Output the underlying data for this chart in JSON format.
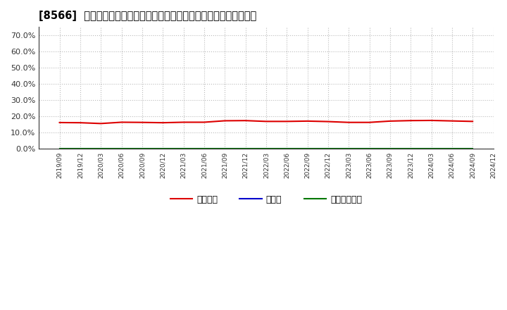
{
  "title": "[8566]  自己資本、のれん、繰延税金資産の総資産に対する比率の推移",
  "x_labels": [
    "2019/09",
    "2019/12",
    "2020/03",
    "2020/06",
    "2020/09",
    "2020/12",
    "2021/03",
    "2021/06",
    "2021/09",
    "2021/12",
    "2022/03",
    "2022/06",
    "2022/09",
    "2022/12",
    "2023/03",
    "2023/06",
    "2023/09",
    "2023/12",
    "2024/03",
    "2024/06",
    "2024/09",
    "2024/12"
  ],
  "equity_ratio": [
    0.161,
    0.16,
    0.155,
    0.163,
    0.162,
    0.16,
    0.163,
    0.163,
    0.172,
    0.173,
    0.168,
    0.168,
    0.17,
    0.167,
    0.162,
    0.162,
    0.17,
    0.173,
    0.174,
    0.171,
    0.168,
    null
  ],
  "noren_ratio": [
    0.0,
    0.0,
    0.0,
    0.0,
    0.0,
    0.0,
    0.0,
    0.0,
    0.0,
    0.0,
    0.0,
    0.0,
    0.0,
    0.0,
    0.0,
    0.0,
    0.0,
    0.0,
    0.0,
    0.0,
    0.0,
    null
  ],
  "deferred_tax_ratio": [
    0.0,
    0.0,
    0.0,
    0.0,
    0.0,
    0.0,
    0.0,
    0.0,
    0.0,
    0.0,
    0.0,
    0.0,
    0.0,
    0.0,
    0.0,
    0.0,
    0.0,
    0.0,
    0.0,
    0.0,
    0.0,
    null
  ],
  "equity_color": "#dd0000",
  "noren_color": "#0000cc",
  "deferred_tax_color": "#007700",
  "ylim": [
    0.0,
    0.75
  ],
  "yticks": [
    0.0,
    0.1,
    0.2,
    0.3,
    0.4,
    0.5,
    0.6,
    0.7
  ],
  "ytick_labels": [
    "0.0%",
    "10.0%",
    "20.0%",
    "30.0%",
    "40.0%",
    "50.0%",
    "60.0%",
    "70.0%"
  ],
  "legend_label_equity": "自己資本",
  "legend_label_noren": "のれん",
  "legend_label_deferred": "繰延税金資産",
  "bg_color": "#ffffff",
  "plot_bg_color": "#ffffff",
  "grid_color": "#bbbbbb",
  "title_prefix": "[8566]  ",
  "title_suffix": "自己資本、のれん、繰延税金資産の総資産に対する比率の推移"
}
